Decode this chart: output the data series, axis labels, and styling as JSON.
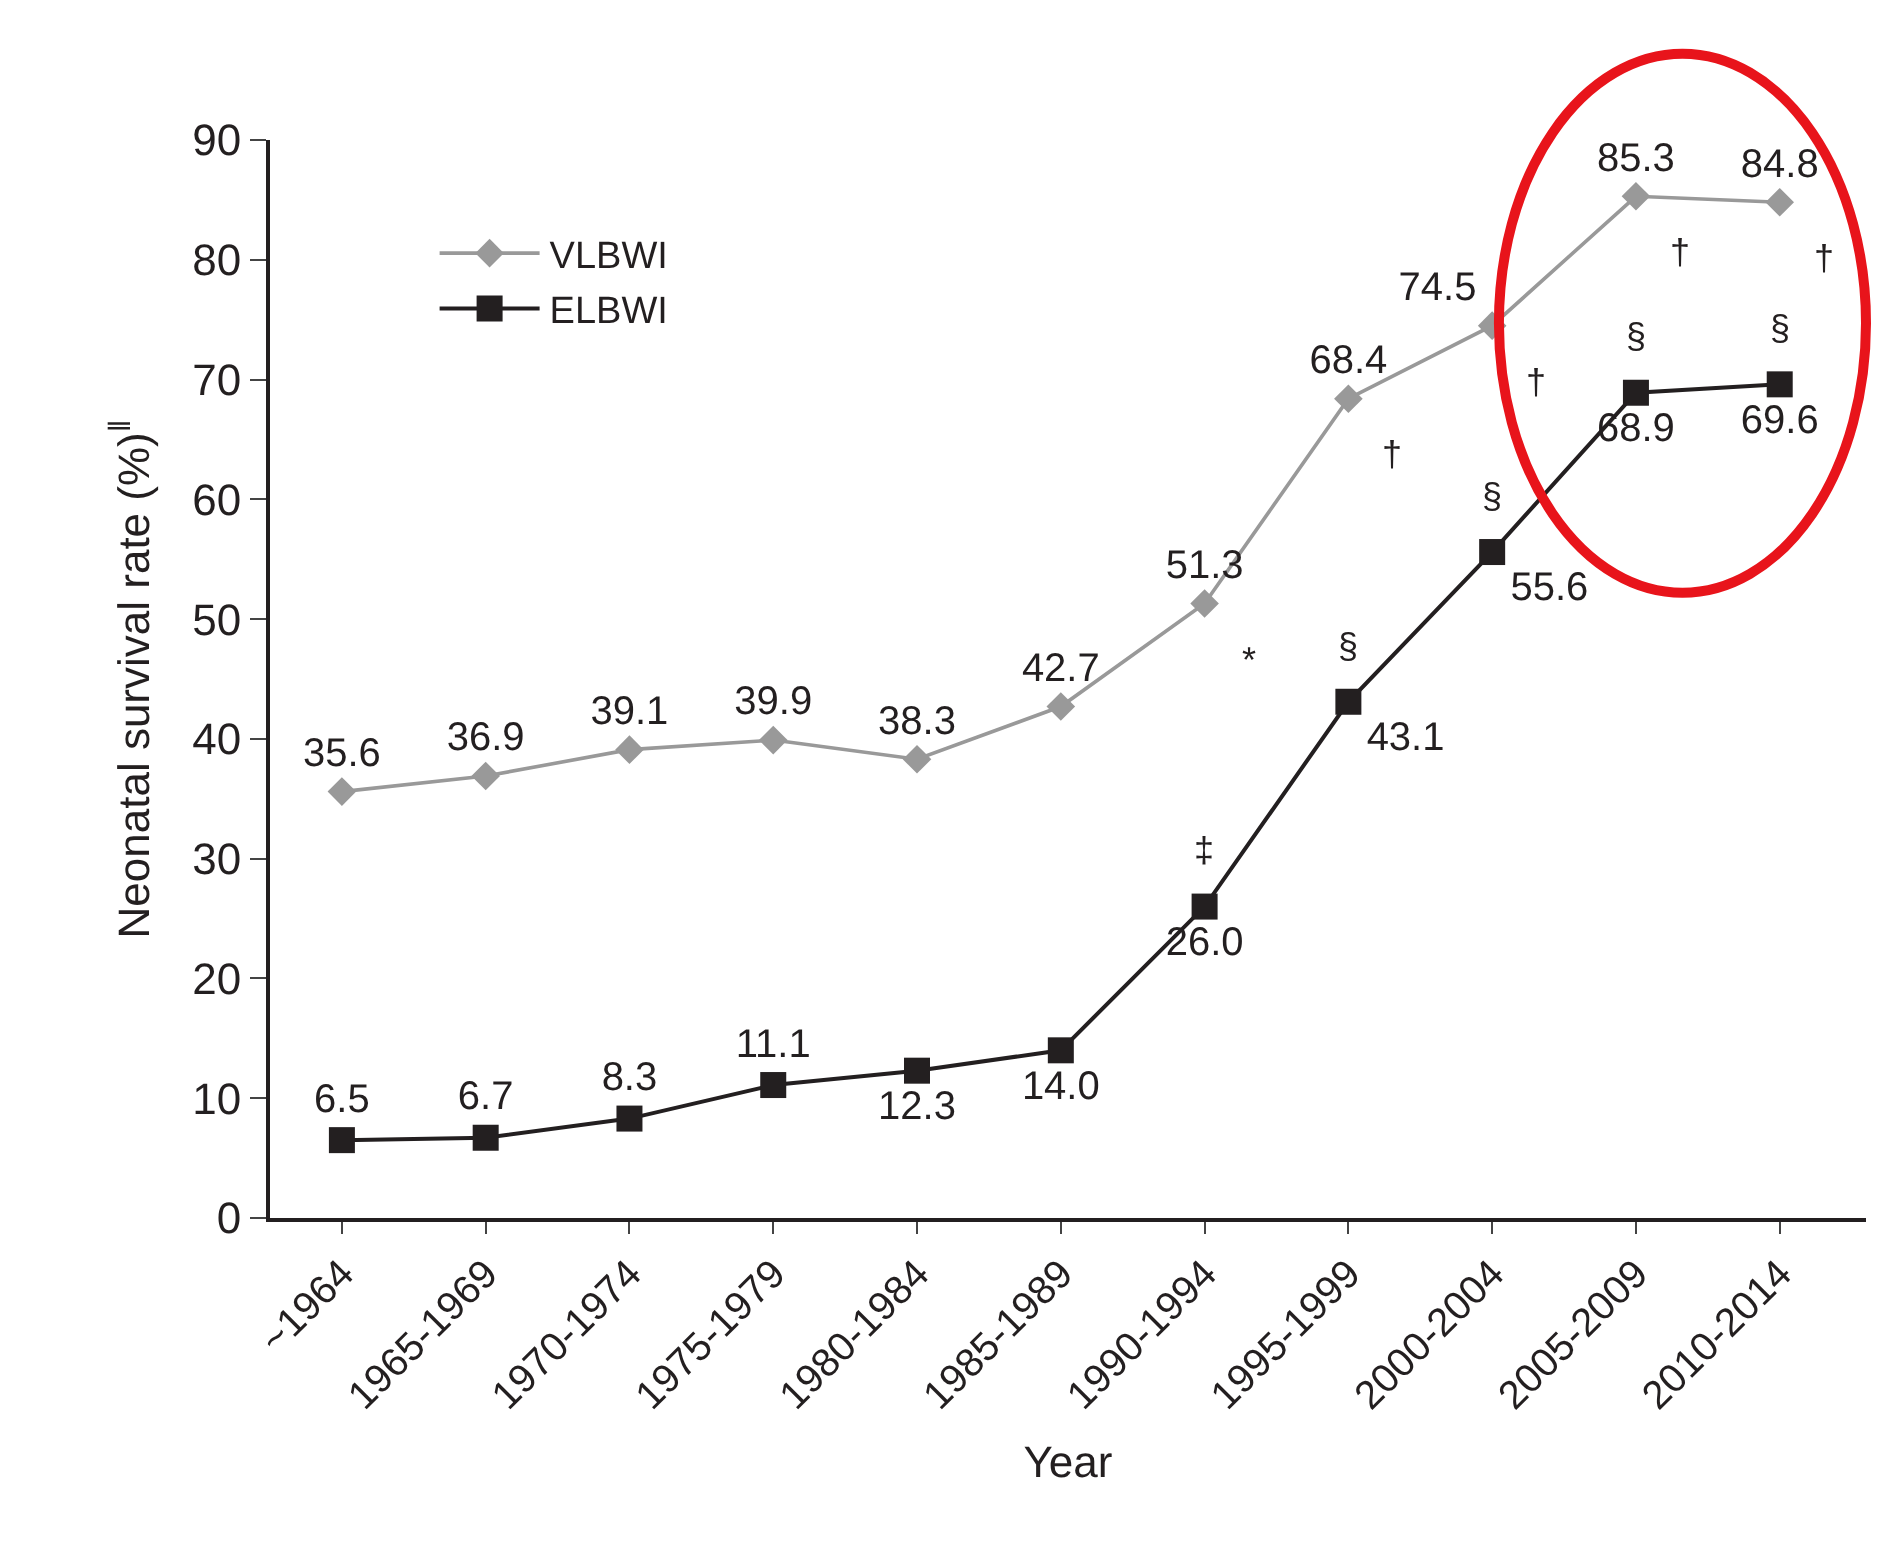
{
  "chart_data": {
    "type": "line",
    "xlabel": "Year",
    "ylabel": "Neonatal survival rate (%)$^{‖}$",
    "categories": [
      "~1964",
      "1965-1969",
      "1970-1974",
      "1975-1979",
      "1980-1984",
      "1985-1989",
      "1990-1994",
      "1995-1999",
      "2000-2004",
      "2005-2009",
      "2010-2014"
    ],
    "series": [
      {
        "name": "VLBWI",
        "color": "#999999",
        "marker": "diamond",
        "values": [
          35.6,
          36.9,
          39.1,
          39.9,
          38.3,
          42.7,
          51.3,
          68.4,
          74.5,
          85.3,
          84.8
        ],
        "value_labels": [
          "35.6",
          "36.9",
          "39.1",
          "39.9",
          "38.3",
          "42.7",
          "51.3",
          "68.4",
          "74.5",
          "85.3",
          "84.8"
        ]
      },
      {
        "name": "ELBWI",
        "color": "#231f20",
        "marker": "square",
        "values": [
          6.5,
          6.7,
          8.3,
          11.1,
          12.3,
          14.0,
          26.0,
          43.1,
          55.6,
          68.9,
          69.6
        ],
        "value_labels": [
          "6.5",
          "6.7",
          "8.3",
          "11.1",
          "12.3",
          "14.0",
          "26.0",
          "43.1",
          "55.6",
          "68.9",
          "69.6"
        ]
      }
    ],
    "ylim": [
      0,
      90
    ],
    "yticks": [
      0,
      10,
      20,
      30,
      40,
      50,
      60,
      70,
      80,
      90
    ],
    "legend": "top left",
    "line_style": "solid",
    "annotations": [
      {
        "text": "*",
        "x": "1990-1994",
        "y": 51.3
      },
      {
        "text": "†",
        "x": "1995-1999",
        "y": 68.4
      },
      {
        "text": "†",
        "x": "2000-2004",
        "y": 74.5
      },
      {
        "text": "†",
        "x": "2005-2009",
        "y": 85.3
      },
      {
        "text": "†",
        "x": "2010-2014",
        "y": 84.8
      },
      {
        "text": "‡",
        "x": "1990-1994",
        "y": 26.0
      },
      {
        "text": "§",
        "x": "1995-1999",
        "y": 43.1
      },
      {
        "text": "§",
        "x": "2000-2004",
        "y": 55.6
      },
      {
        "text": "§",
        "x": "2005-2009",
        "y": 68.9
      },
      {
        "text": "§",
        "x": "2010-2014",
        "y": 69.6
      }
    ]
  }
}
